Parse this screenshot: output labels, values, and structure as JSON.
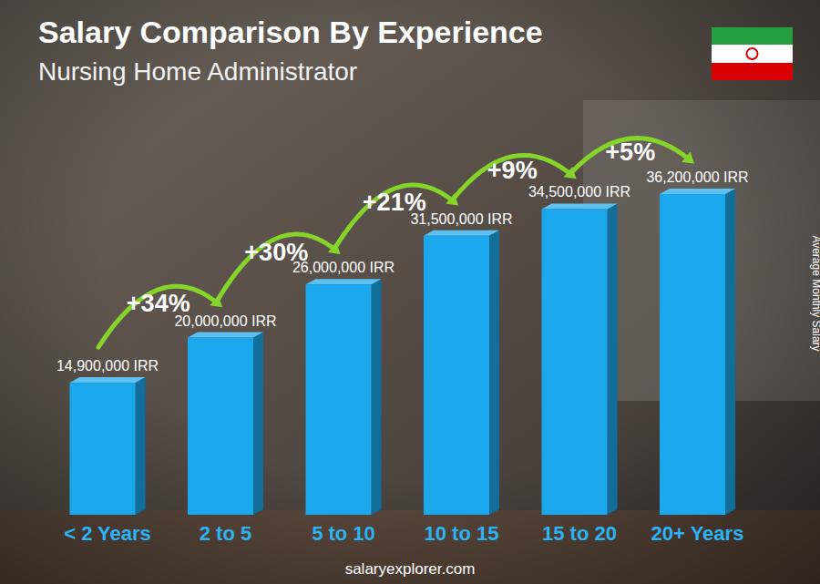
{
  "chart_data": {
    "type": "bar",
    "title": "Salary Comparison By Experience",
    "subtitle": "Nursing Home Administrator",
    "y_label": "Average Monthly Salary",
    "source": "salaryexplorer.com",
    "categories": [
      "< 2 Years",
      "2 to 5",
      "5 to 10",
      "10 to 15",
      "15 to 20",
      "20+ Years"
    ],
    "values": [
      14900000,
      20000000,
      26000000,
      31500000,
      34500000,
      36200000
    ],
    "value_labels": [
      "14,900,000 IRR",
      "20,000,000 IRR",
      "26,000,000 IRR",
      "31,500,000 IRR",
      "34,500,000 IRR",
      "36,200,000 IRR"
    ],
    "annotations": [
      "+34%",
      "+30%",
      "+21%",
      "+9%",
      "+5%"
    ],
    "color": "#1aa7ec",
    "ylim": [
      0,
      40000000
    ],
    "grid": false,
    "data_labels": true,
    "tick_labels": "x"
  }
}
